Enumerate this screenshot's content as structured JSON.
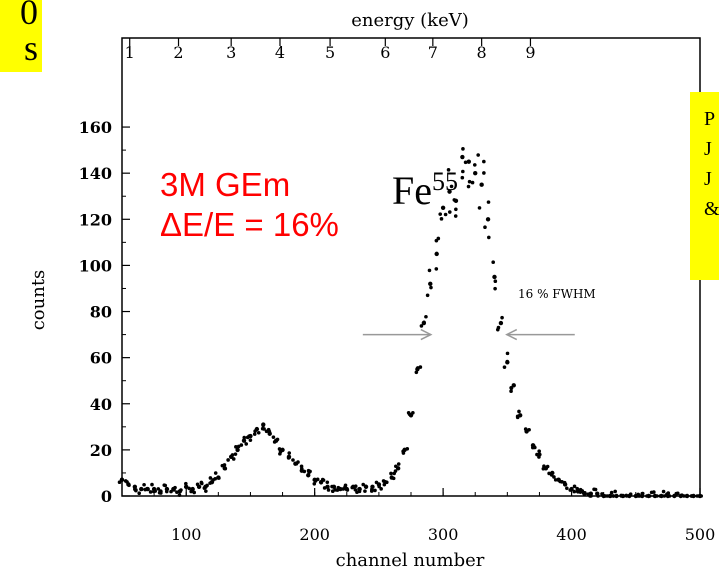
{
  "corner_box": {
    "lines": [
      "0",
      "s"
    ]
  },
  "note_box": {
    "lines": [
      "P",
      "J",
      "J",
      "&"
    ]
  },
  "annotations": {
    "title_line1": "3M GEm",
    "title_line2": "ΔE/E = 16%",
    "fwhm_label": "16 % FWHM",
    "isotope": "Fe",
    "isotope_mass": "55"
  },
  "colors": {
    "annotation_red": "#ff0000",
    "highlight_yellow": "#ffff00",
    "points": "#000000",
    "arrows": "#999999"
  },
  "chart_data": {
    "type": "scatter",
    "xlabel": "channel number",
    "ylabel": "counts",
    "x2label": "energy (keV)",
    "xlim": [
      50,
      500
    ],
    "ylim": [
      0,
      170
    ],
    "x_ticks": [
      100,
      200,
      300,
      400,
      500
    ],
    "y_ticks": [
      0,
      20,
      40,
      60,
      80,
      100,
      120,
      140,
      160
    ],
    "x2_ticks": [
      1,
      2,
      3,
      4,
      5,
      6,
      7,
      8,
      9
    ],
    "x2_tick_channels": [
      56,
      94,
      135,
      173,
      212,
      255,
      292,
      330,
      368
    ],
    "fwhm_channels": [
      292,
      348
    ],
    "series": [
      {
        "x": [
          50,
          55,
          60,
          65,
          70,
          75,
          80,
          85,
          90,
          95,
          100,
          105,
          110,
          115,
          120,
          125,
          130,
          135,
          140,
          145,
          150,
          155,
          160,
          165,
          170,
          175,
          180,
          185,
          190,
          195,
          200,
          205,
          210,
          215,
          220,
          225,
          230,
          235,
          240,
          245,
          250,
          255,
          260,
          265,
          270,
          275,
          280,
          285,
          290,
          295,
          300,
          305,
          310,
          315,
          320,
          325,
          330,
          335,
          340,
          345,
          350,
          355,
          360,
          365,
          370,
          375,
          380,
          385,
          390,
          395,
          400,
          405,
          410,
          415,
          420,
          425,
          430,
          435,
          440,
          445,
          450,
          455,
          460,
          465,
          470,
          475,
          480,
          485,
          490,
          495,
          500
        ],
        "values": [
          7,
          5,
          4,
          3,
          3,
          3,
          2,
          3,
          3,
          2,
          4,
          3,
          4,
          4,
          6,
          8,
          12,
          17,
          20,
          24,
          26,
          29,
          31,
          27,
          24,
          20,
          17,
          14,
          11,
          9,
          7,
          6,
          4,
          4,
          3,
          3,
          4,
          3,
          4,
          4,
          5,
          6,
          8,
          12,
          20,
          35,
          55,
          75,
          92,
          105,
          125,
          132,
          128,
          147,
          145,
          140,
          135,
          120,
          95,
          75,
          58,
          48,
          35,
          28,
          22,
          18,
          12,
          10,
          7,
          5,
          3,
          2,
          1,
          1,
          1,
          0,
          0,
          0,
          0,
          0,
          0,
          0,
          0,
          0,
          0,
          0,
          0,
          0,
          0,
          0,
          0
        ]
      }
    ]
  }
}
